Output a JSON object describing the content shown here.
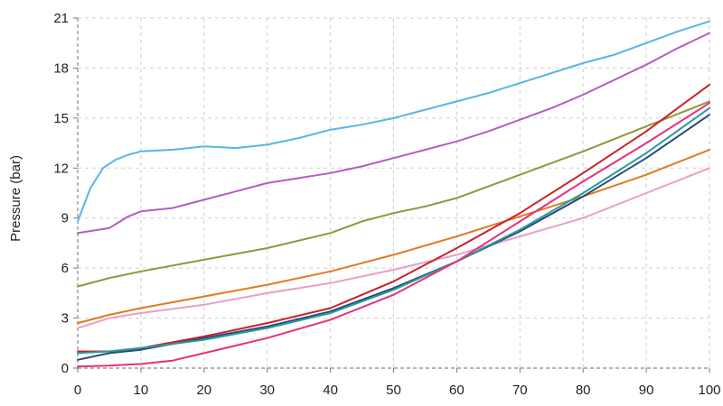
{
  "chart_data": {
    "type": "line",
    "title": "",
    "xlabel": "",
    "ylabel": "Pressure (bar)",
    "xlim": [
      0,
      100
    ],
    "ylim": [
      0,
      21
    ],
    "x_ticks": [
      0,
      10,
      20,
      30,
      40,
      50,
      60,
      70,
      80,
      90,
      100
    ],
    "y_ticks": [
      0,
      3,
      6,
      9,
      12,
      15,
      18,
      21
    ],
    "grid": true,
    "legend": "none",
    "series": [
      {
        "color": "#5ab4e5",
        "x": [
          0,
          2,
          4,
          6,
          8,
          10,
          15,
          20,
          25,
          30,
          35,
          40,
          45,
          50,
          55,
          60,
          65,
          70,
          75,
          80,
          85,
          90,
          95,
          100
        ],
        "y": [
          8.8,
          10.8,
          12.0,
          12.5,
          12.8,
          13.0,
          13.1,
          13.3,
          13.2,
          13.4,
          13.8,
          14.3,
          14.6,
          15.0,
          15.5,
          16.0,
          16.5,
          17.1,
          17.7,
          18.3,
          18.8,
          19.5,
          20.2,
          20.8
        ]
      },
      {
        "color": "#b15fc0",
        "x": [
          0,
          5,
          8,
          10,
          15,
          20,
          25,
          30,
          35,
          40,
          45,
          50,
          55,
          60,
          65,
          70,
          75,
          80,
          85,
          90,
          95,
          100
        ],
        "y": [
          8.1,
          8.4,
          9.1,
          9.4,
          9.6,
          10.1,
          10.6,
          11.1,
          11.4,
          11.7,
          12.1,
          12.6,
          13.1,
          13.6,
          14.2,
          14.9,
          15.6,
          16.4,
          17.3,
          18.2,
          19.2,
          20.1
        ]
      },
      {
        "color": "#8a9a3a",
        "x": [
          0,
          5,
          10,
          20,
          30,
          40,
          45,
          50,
          55,
          60,
          70,
          80,
          90,
          100
        ],
        "y": [
          4.9,
          5.4,
          5.8,
          6.5,
          7.2,
          8.1,
          8.8,
          9.3,
          9.7,
          10.2,
          11.6,
          13.0,
          14.5,
          16.0
        ]
      },
      {
        "color": "#e07a1f",
        "x": [
          0,
          5,
          10,
          20,
          30,
          40,
          50,
          60,
          70,
          80,
          90,
          100
        ],
        "y": [
          2.7,
          3.2,
          3.6,
          4.3,
          5.0,
          5.8,
          6.8,
          7.9,
          9.1,
          10.3,
          11.6,
          13.1
        ]
      },
      {
        "color": "#e6a0c8",
        "x": [
          0,
          5,
          10,
          20,
          30,
          40,
          50,
          60,
          70,
          80,
          90,
          100
        ],
        "y": [
          2.4,
          3.0,
          3.3,
          3.8,
          4.5,
          5.1,
          5.9,
          6.8,
          7.9,
          9.0,
          10.5,
          12.0
        ]
      },
      {
        "color": "#c8232c",
        "x": [
          0,
          5,
          10,
          20,
          30,
          40,
          50,
          60,
          70,
          80,
          90,
          100
        ],
        "y": [
          1.0,
          1.0,
          1.2,
          1.9,
          2.7,
          3.6,
          5.2,
          7.2,
          9.3,
          11.7,
          14.2,
          17.0
        ]
      },
      {
        "color": "#2a4a7a",
        "x": [
          0,
          5,
          10,
          20,
          30,
          40,
          50,
          60,
          70,
          80,
          90,
          100
        ],
        "y": [
          0.5,
          0.9,
          1.1,
          1.8,
          2.5,
          3.4,
          4.8,
          6.4,
          8.2,
          10.3,
          12.6,
          15.2
        ]
      },
      {
        "color": "#2a9a9a",
        "x": [
          0,
          5,
          10,
          20,
          30,
          40,
          50,
          60,
          70,
          80,
          90,
          100
        ],
        "y": [
          0.9,
          1.0,
          1.2,
          1.7,
          2.4,
          3.3,
          4.7,
          6.4,
          8.3,
          10.5,
          12.9,
          15.6
        ]
      },
      {
        "color": "#e8307a",
        "x": [
          0,
          5,
          10,
          15,
          20,
          30,
          40,
          50,
          60,
          70,
          80,
          90,
          100
        ],
        "y": [
          0.1,
          0.15,
          0.25,
          0.45,
          0.9,
          1.8,
          2.9,
          4.4,
          6.4,
          8.8,
          11.2,
          13.5,
          15.9
        ]
      }
    ]
  }
}
